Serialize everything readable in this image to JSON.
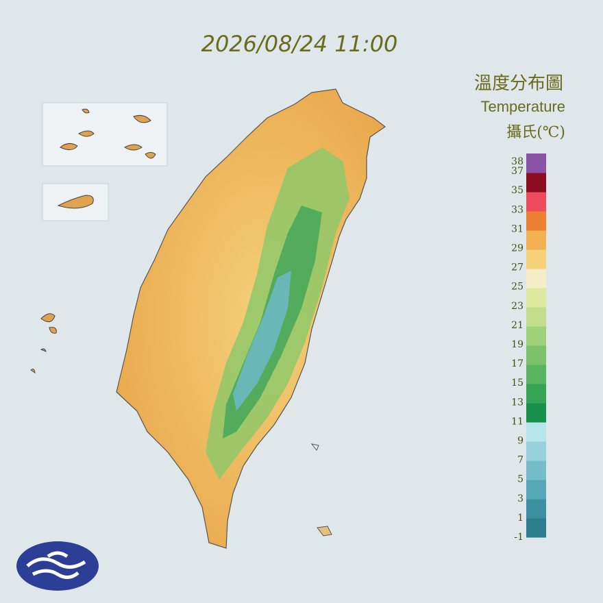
{
  "header": {
    "timestamp": "2026/08/24 11:00"
  },
  "legend": {
    "title": "溫度分布圖",
    "subtitle": "Temperature",
    "unit": "攝氏(℃)",
    "ticks": [
      38,
      37,
      35,
      33,
      31,
      29,
      27,
      25,
      23,
      21,
      19,
      17,
      15,
      13,
      11,
      9,
      7,
      5,
      3,
      1,
      -1
    ],
    "colors": [
      "#2b7c8c",
      "#3b91a2",
      "#56a8b9",
      "#75bdcb",
      "#96d1dc",
      "#b6e5ec",
      "#16904a",
      "#35a454",
      "#58b45e",
      "#7bc36a",
      "#9ed17a",
      "#c0de8b",
      "#dde99e",
      "#f3eec5",
      "#f5d27a",
      "#f2b052",
      "#ec8030",
      "#ee4c5c",
      "#8c0d1f",
      "#8a52a6"
    ]
  }
}
